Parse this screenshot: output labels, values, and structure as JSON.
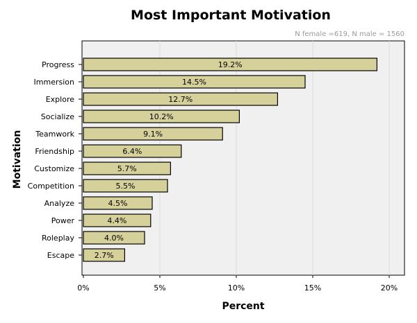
{
  "chart_data": {
    "type": "bar",
    "orientation": "horizontal",
    "title": "Most Important Motivation",
    "subtitle": "N female =619, N male = 1560",
    "xlabel": "Percent",
    "ylabel": "Motivation",
    "categories": [
      "Progress",
      "Immersion",
      "Explore",
      "Socialize",
      "Teamwork",
      "Friendship",
      "Customize",
      "Competition",
      "Analyze",
      "Power",
      "Roleplay",
      "Escape"
    ],
    "values": [
      19.2,
      14.5,
      12.7,
      10.2,
      9.1,
      6.4,
      5.7,
      5.5,
      4.5,
      4.4,
      4.0,
      2.7
    ],
    "value_labels": [
      "19.2%",
      "14.5%",
      "12.7%",
      "10.2%",
      "9.1%",
      "6.4%",
      "5.7%",
      "5.5%",
      "4.5%",
      "4.4%",
      "4.0%",
      "2.7%"
    ],
    "xlim": [
      0,
      21
    ],
    "xticks": [
      0,
      5,
      10,
      15,
      20
    ],
    "xtick_labels": [
      "0%",
      "5%",
      "10%",
      "15%",
      "20%"
    ],
    "grid": true,
    "legend": "none",
    "colors": {
      "bar_fill": "#d6d09b",
      "bar_stroke": "#000000",
      "plot_background": "#f0f0f0",
      "gridline": "#dcdcdc",
      "subtitle": "#9a9a9a"
    }
  }
}
